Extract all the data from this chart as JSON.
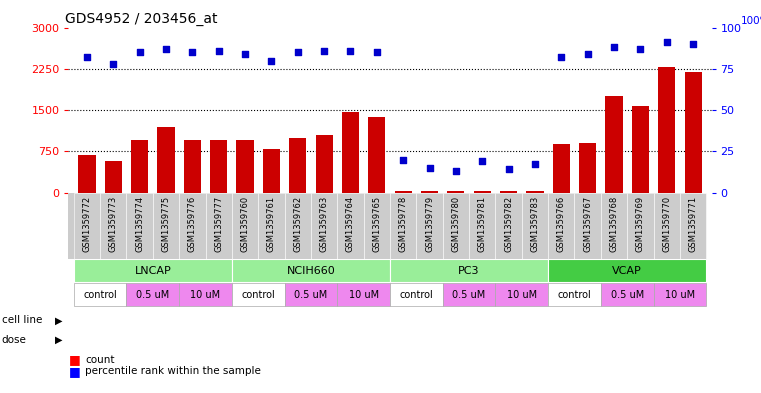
{
  "title": "GDS4952 / 203456_at",
  "samples": [
    "GSM1359772",
    "GSM1359773",
    "GSM1359774",
    "GSM1359775",
    "GSM1359776",
    "GSM1359777",
    "GSM1359760",
    "GSM1359761",
    "GSM1359762",
    "GSM1359763",
    "GSM1359764",
    "GSM1359765",
    "GSM1359778",
    "GSM1359779",
    "GSM1359780",
    "GSM1359781",
    "GSM1359782",
    "GSM1359783",
    "GSM1359766",
    "GSM1359767",
    "GSM1359768",
    "GSM1359769",
    "GSM1359770",
    "GSM1359771"
  ],
  "counts": [
    680,
    570,
    950,
    1200,
    950,
    950,
    950,
    800,
    1000,
    1050,
    1470,
    1380,
    30,
    30,
    30,
    30,
    30,
    30,
    880,
    900,
    1750,
    1580,
    2280,
    2200
  ],
  "percentile_ranks": [
    82,
    78,
    85,
    87,
    85,
    86,
    84,
    80,
    85,
    86,
    86,
    85,
    20,
    15,
    13,
    19,
    14,
    17,
    82,
    84,
    88,
    87,
    91,
    90
  ],
  "ylim_left": [
    0,
    3000
  ],
  "ylim_right": [
    0,
    100
  ],
  "yticks_left": [
    0,
    750,
    1500,
    2250,
    3000
  ],
  "yticks_right": [
    0,
    25,
    50,
    75,
    100
  ],
  "bar_color": "#cc0000",
  "dot_color": "#0000cc",
  "cell_line_groups": [
    {
      "label": "LNCAP",
      "start": 0,
      "end": 6,
      "color": "#99ee99"
    },
    {
      "label": "NCIH660",
      "start": 6,
      "end": 12,
      "color": "#99ee99"
    },
    {
      "label": "PC3",
      "start": 12,
      "end": 18,
      "color": "#99ee99"
    },
    {
      "label": "VCAP",
      "start": 18,
      "end": 24,
      "color": "#44cc44"
    }
  ],
  "dose_groups": [
    {
      "label": "control",
      "start": 0,
      "end": 2,
      "color": "#ffffff"
    },
    {
      "label": "0.5 uM",
      "start": 2,
      "end": 4,
      "color": "#ee88ee"
    },
    {
      "label": "10 uM",
      "start": 4,
      "end": 6,
      "color": "#ee88ee"
    },
    {
      "label": "control",
      "start": 6,
      "end": 8,
      "color": "#ffffff"
    },
    {
      "label": "0.5 uM",
      "start": 8,
      "end": 10,
      "color": "#ee88ee"
    },
    {
      "label": "10 uM",
      "start": 10,
      "end": 12,
      "color": "#ee88ee"
    },
    {
      "label": "control",
      "start": 12,
      "end": 14,
      "color": "#ffffff"
    },
    {
      "label": "0.5 uM",
      "start": 14,
      "end": 16,
      "color": "#ee88ee"
    },
    {
      "label": "10 uM",
      "start": 16,
      "end": 18,
      "color": "#ee88ee"
    },
    {
      "label": "control",
      "start": 18,
      "end": 20,
      "color": "#ffffff"
    },
    {
      "label": "0.5 uM",
      "start": 20,
      "end": 22,
      "color": "#ee88ee"
    },
    {
      "label": "10 uM",
      "start": 22,
      "end": 24,
      "color": "#ee88ee"
    }
  ],
  "background_color": "#ffffff",
  "tick_bg_color": "#cccccc",
  "tick_label_fontsize": 6.0,
  "title_fontsize": 10
}
